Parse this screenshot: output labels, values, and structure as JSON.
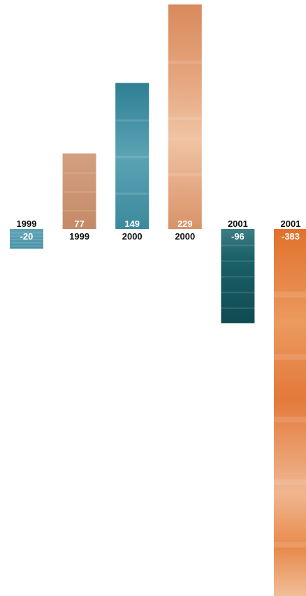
{
  "chart_data": {
    "type": "bar",
    "title": "",
    "xlabel": "",
    "ylabel": "",
    "grid": false,
    "legend": "none",
    "ylim": [
      -383,
      229
    ],
    "bars": [
      {
        "year": "1999",
        "value": -20,
        "value_label": "-20",
        "color": "#4f97ac"
      },
      {
        "year": "1999",
        "value": 77,
        "value_label": "77",
        "color": "#cf9878"
      },
      {
        "year": "2000",
        "value": 149,
        "value_label": "149",
        "color": "#3c8a9b"
      },
      {
        "year": "2000",
        "value": 229,
        "value_label": "229",
        "color": "#d9946c"
      },
      {
        "year": "2001",
        "value": -96,
        "value_label": "-96",
        "color": "#175a60"
      },
      {
        "year": "2001",
        "value": -383,
        "value_label": "-383",
        "color": "#e07a3c"
      }
    ]
  }
}
